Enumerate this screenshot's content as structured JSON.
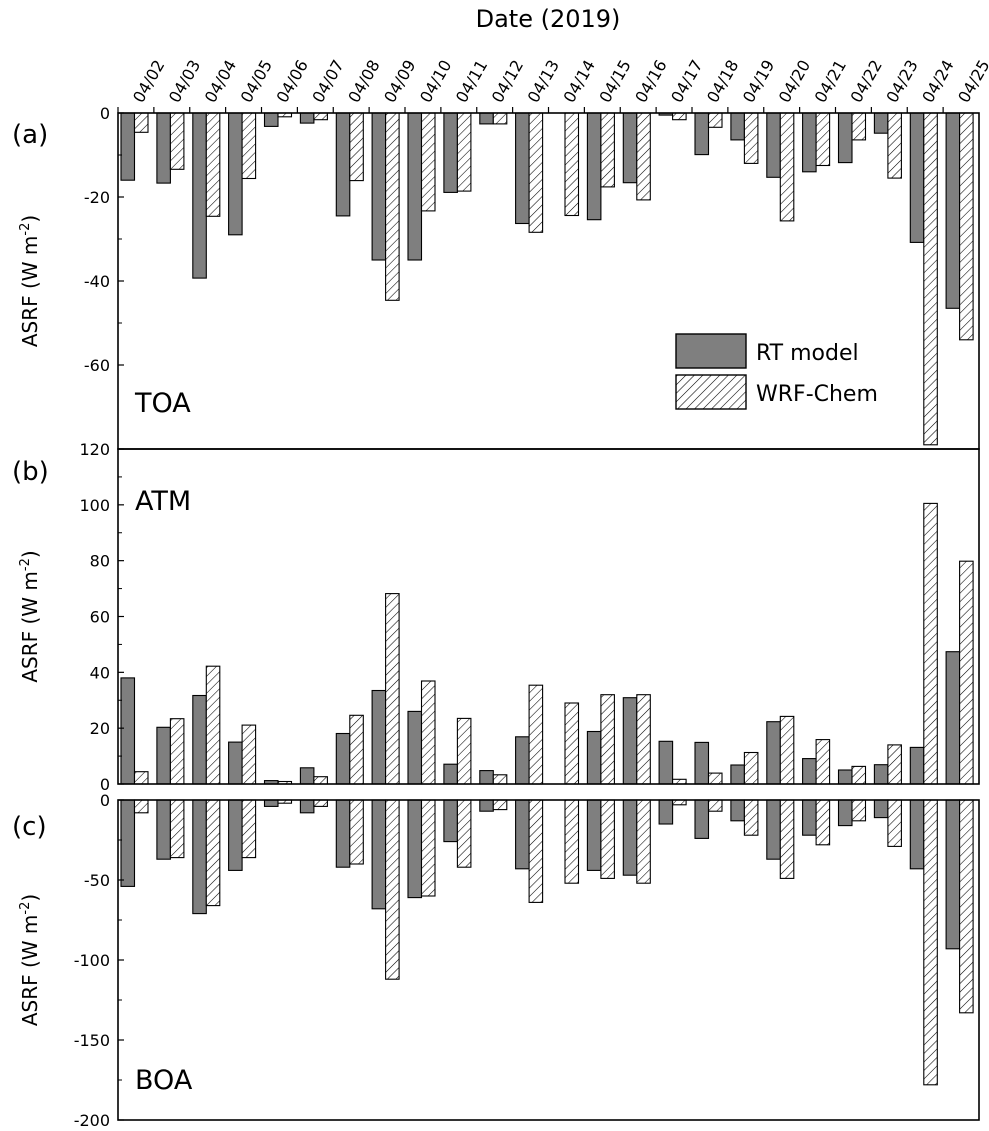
{
  "chart_data": {
    "type": "bar",
    "xlabel": "Date (2019)",
    "categories": [
      "04/02",
      "04/03",
      "04/04",
      "04/05",
      "04/06",
      "04/07",
      "04/08",
      "04/09",
      "04/10",
      "04/11",
      "04/12",
      "04/13",
      "04/14",
      "04/15",
      "04/16",
      "04/17",
      "04/18",
      "04/19",
      "04/20",
      "04/21",
      "04/22",
      "04/23",
      "04/24",
      "04/25"
    ],
    "legend": {
      "position": "inside-right",
      "entries": [
        "RT model",
        "WRF-Chem"
      ]
    },
    "series_style": {
      "RT model": {
        "fill": "#7f7f7f",
        "pattern": "solid"
      },
      "WRF-Chem": {
        "fill": "#ffffff",
        "pattern": "diagonal-hatch"
      }
    },
    "panels": [
      {
        "tag": "(a)",
        "name": "TOA",
        "ylabel": "ASRF (W m-2)",
        "ylabel_main": "ASRF (W m",
        "ylabel_sup": "-2",
        "ylabel_end": ")",
        "ylim": [
          -80,
          0
        ],
        "yticks": [
          0,
          -20,
          -40,
          -60
        ],
        "tick_labels": [
          "0",
          "-20",
          "-40",
          "-60"
        ],
        "series": [
          {
            "name": "RT model",
            "values": [
              -16.0,
              -16.7,
              -39.3,
              -29.0,
              -3.2,
              -2.4,
              -24.5,
              -35.0,
              -35.0,
              -18.9,
              -2.6,
              -26.3,
              0,
              -25.4,
              -16.6,
              -0.5,
              -9.9,
              -6.4,
              -15.3,
              -14.0,
              -11.8,
              -4.8,
              -30.8,
              -46.5
            ]
          },
          {
            "name": "WRF-Chem",
            "values": [
              -4.6,
              -13.4,
              -24.6,
              -15.6,
              -0.9,
              -1.6,
              -16.1,
              -44.6,
              -23.3,
              -18.6,
              -2.6,
              -28.4,
              -24.4,
              -17.6,
              -20.7,
              -1.6,
              -3.4,
              -12.0,
              -25.7,
              -12.5,
              -6.4,
              -15.5,
              -79.0,
              -54.0
            ]
          }
        ]
      },
      {
        "tag": "(b)",
        "name": "ATM",
        "ylabel": "ASRF (W m-2)",
        "ylabel_main": "ASRF (W m",
        "ylabel_sup": "-2",
        "ylabel_end": ")",
        "ylim": [
          0,
          120
        ],
        "yticks": [
          0,
          20,
          40,
          60,
          80,
          100,
          120
        ],
        "tick_labels": [
          "0",
          "20",
          "40",
          "60",
          "80",
          "100",
          "120"
        ],
        "series": [
          {
            "name": "RT model",
            "values": [
              38.0,
              20.3,
              31.7,
              15.0,
              1.2,
              5.8,
              18.1,
              33.5,
              26.0,
              7.1,
              4.8,
              16.9,
              0,
              18.8,
              30.9,
              15.3,
              14.9,
              6.8,
              22.3,
              9.1,
              5.0,
              6.9,
              13.1,
              47.4
            ]
          },
          {
            "name": "WRF-Chem",
            "values": [
              4.4,
              23.4,
              42.2,
              21.1,
              0.9,
              2.6,
              24.6,
              68.2,
              36.9,
              23.5,
              3.3,
              35.4,
              29.0,
              32.0,
              32.0,
              1.7,
              3.9,
              11.3,
              24.2,
              15.9,
              6.3,
              14.0,
              100.5,
              79.8
            ]
          }
        ]
      },
      {
        "tag": "(c)",
        "name": "BOA",
        "ylabel": "ASRF (W m-2)",
        "ylabel_main": "ASRF (W m",
        "ylabel_sup": "-2",
        "ylabel_end": ")",
        "ylim": [
          -200,
          0
        ],
        "yticks": [
          0,
          -50,
          -100,
          -150,
          -200
        ],
        "tick_labels": [
          "0",
          "-50",
          "-100",
          "-150",
          "-200"
        ],
        "series": [
          {
            "name": "RT model",
            "values": [
              -54.0,
              -37.0,
              -71.0,
              -44.0,
              -4.0,
              -8.0,
              -42.0,
              -68.0,
              -61.0,
              -26.0,
              -7.0,
              -43.0,
              0,
              -44.0,
              -47.0,
              -15.0,
              -24.0,
              -13.0,
              -37.0,
              -22.0,
              -16.0,
              -11.0,
              -43.0,
              -93.0
            ]
          },
          {
            "name": "WRF-Chem",
            "values": [
              -8.0,
              -36.0,
              -66.0,
              -36.0,
              -2.0,
              -4.0,
              -40.0,
              -112.0,
              -60.0,
              -42.0,
              -6.0,
              -64.0,
              -52.0,
              -49.0,
              -52.0,
              -3.0,
              -7.0,
              -22.0,
              -49.0,
              -28.0,
              -13.0,
              -29.0,
              -178.0,
              -133.0
            ]
          }
        ]
      }
    ]
  }
}
